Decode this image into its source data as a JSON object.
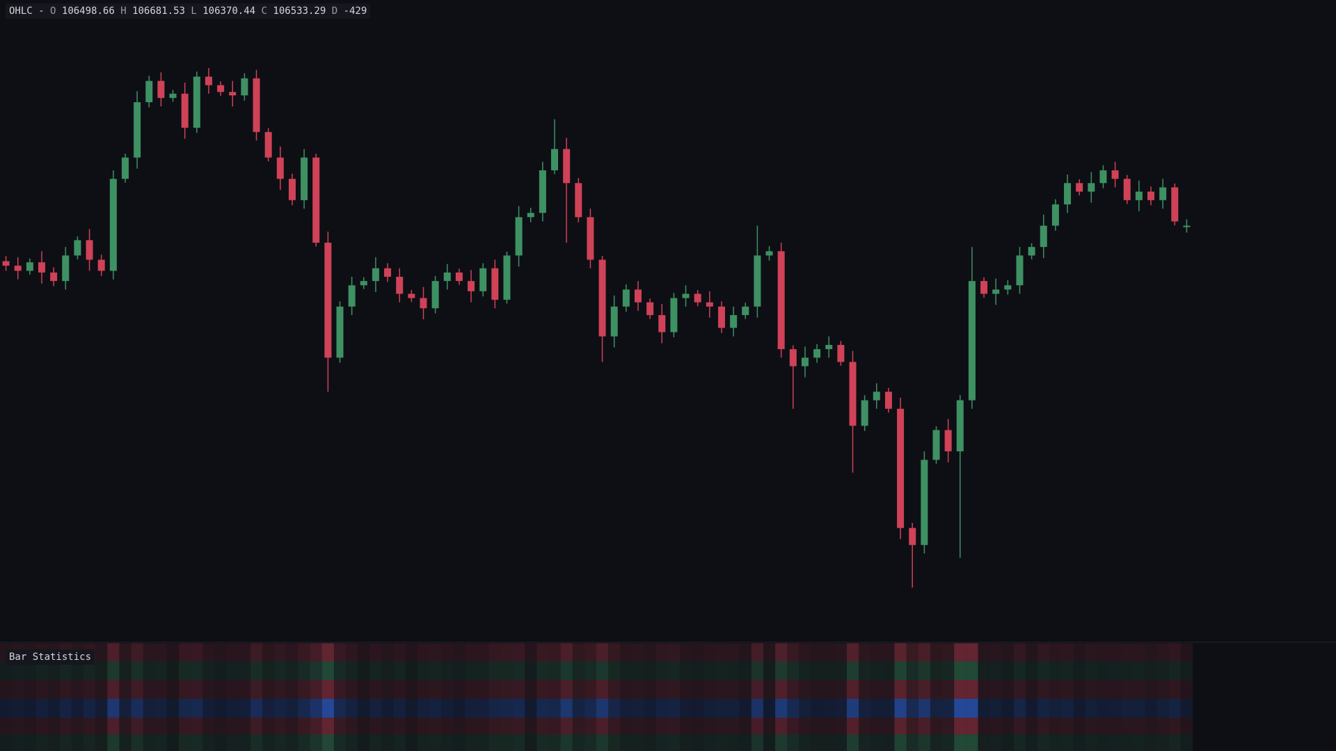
{
  "header": {
    "label": "OHLC -",
    "items": [
      {
        "key": "O",
        "value": 106498.66
      },
      {
        "key": "H",
        "value": 106681.53
      },
      {
        "key": "L",
        "value": 106370.44
      },
      {
        "key": "C",
        "value": 106533.29
      },
      {
        "key": "D",
        "value": -429
      }
    ]
  },
  "indicator": {
    "title": "Bar Statistics"
  },
  "chart_data": {
    "type": "candlestick",
    "up_color": "#3e9163",
    "down_color": "#cf4257",
    "open": [
      105700,
      105593,
      105473,
      105673,
      105433,
      105233,
      105833,
      106193,
      105733,
      105473,
      107633,
      108133,
      109433,
      109933,
      109533,
      109633,
      108833,
      110033,
      109833,
      109673,
      109593,
      109993,
      108733,
      108133,
      107633,
      107133,
      108133,
      106133,
      103433,
      104633,
      105133,
      105233,
      105533,
      105333,
      104933,
      104833,
      104593,
      105233,
      105433,
      105233,
      104993,
      105533,
      104793,
      105833,
      106733,
      106833,
      107833,
      108333,
      107533,
      106733,
      105733,
      103933,
      104633,
      105033,
      104733,
      104433,
      104033,
      104833,
      104933,
      104733,
      104633,
      104133,
      104433,
      104633,
      105833,
      105933,
      103633,
      103233,
      103433,
      103633,
      103733,
      103333,
      101833,
      102433,
      102633,
      102233,
      99433,
      99033,
      101033,
      101733,
      101233,
      102433,
      105233,
      104933,
      105033,
      105133,
      105833,
      106033,
      106533,
      107033,
      107533,
      107333,
      107533,
      107833,
      107633,
      107133,
      107333,
      107133,
      107433,
      106498.66
    ],
    "high": [
      105820,
      105793,
      105763,
      105933,
      105553,
      106033,
      106283,
      106453,
      105853,
      107833,
      108223,
      109693,
      110053,
      110133,
      109723,
      109893,
      110153,
      110233,
      109923,
      109933,
      110113,
      110193,
      108823,
      108393,
      107753,
      108333,
      108223,
      106393,
      104753,
      105333,
      105323,
      105793,
      105653,
      105533,
      105023,
      105093,
      105353,
      105633,
      105523,
      105493,
      105653,
      105733,
      105923,
      106993,
      106953,
      108033,
      109033,
      108593,
      107653,
      106933,
      105823,
      104893,
      105153,
      105233,
      104823,
      104693,
      104953,
      105133,
      105023,
      104993,
      104753,
      104633,
      104723,
      106533,
      106053,
      106133,
      103723,
      103693,
      103753,
      103933,
      103823,
      103593,
      102553,
      102833,
      102723,
      102493,
      99553,
      101233,
      101823,
      101993,
      102553,
      106033,
      105323,
      105293,
      105253,
      106033,
      106123,
      106793,
      107153,
      107733,
      107623,
      107793,
      107953,
      108033,
      107723,
      107593,
      107453,
      107633,
      107523,
      106681.53
    ],
    "low": [
      105473,
      105273,
      105383,
      105173,
      105113,
      105033,
      105743,
      105473,
      105353,
      105273,
      107543,
      107873,
      109313,
      109333,
      109443,
      108573,
      108713,
      109633,
      109583,
      109333,
      109473,
      108533,
      108043,
      107373,
      107013,
      106933,
      106043,
      102633,
      103313,
      104433,
      105043,
      104973,
      105213,
      104733,
      104743,
      104333,
      104473,
      105033,
      105143,
      104733,
      104873,
      104593,
      104703,
      105573,
      106613,
      106633,
      107743,
      106133,
      106613,
      105533,
      103333,
      103673,
      104513,
      104533,
      104343,
      103773,
      103913,
      104633,
      104643,
      104373,
      104013,
      103933,
      104343,
      104373,
      105713,
      103433,
      102233,
      102973,
      103313,
      103433,
      103243,
      100733,
      101713,
      102233,
      102143,
      99173,
      98033,
      98833,
      100943,
      100973,
      98733,
      102233,
      104843,
      104673,
      104913,
      104933,
      105743,
      105773,
      106413,
      106833,
      107243,
      107073,
      107413,
      107433,
      107043,
      106873,
      107013,
      106933,
      106543,
      106370.44
    ],
    "close": [
      105593,
      105473,
      105673,
      105433,
      105233,
      105833,
      106193,
      105733,
      105473,
      107633,
      108133,
      109433,
      109933,
      109533,
      109633,
      108833,
      110033,
      109833,
      109673,
      109593,
      109993,
      108733,
      108133,
      107633,
      107133,
      108133,
      106133,
      103433,
      104633,
      105133,
      105233,
      105533,
      105333,
      104933,
      104833,
      104593,
      105233,
      105433,
      105233,
      104993,
      105533,
      104793,
      105833,
      106733,
      106833,
      107833,
      108333,
      107533,
      106733,
      105733,
      103933,
      104633,
      105033,
      104733,
      104433,
      104033,
      104833,
      104933,
      104733,
      104633,
      104133,
      104433,
      104633,
      105833,
      105933,
      103633,
      103233,
      103433,
      103633,
      103733,
      103333,
      101833,
      102433,
      102633,
      102233,
      99433,
      99033,
      101033,
      101733,
      101233,
      102433,
      105233,
      104933,
      105033,
      105133,
      105833,
      106033,
      106533,
      107033,
      107533,
      107333,
      107533,
      107833,
      107633,
      107133,
      107333,
      107133,
      107433,
      106633,
      106533.29
    ]
  }
}
